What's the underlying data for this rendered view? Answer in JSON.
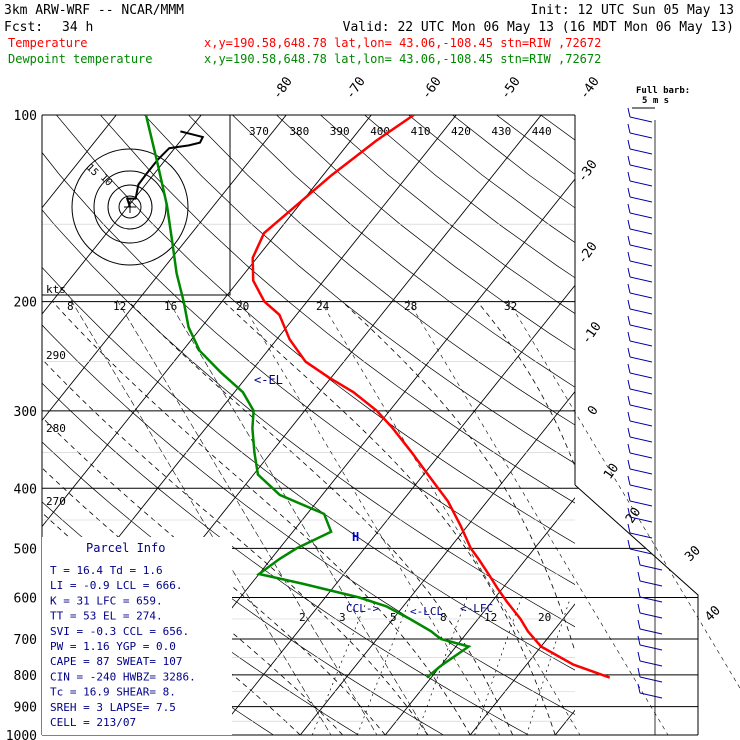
{
  "header": {
    "model": "3km ARW-WRF -- NCAR/MMM",
    "init": "Init: 12 UTC Sun 05 May 13",
    "fcst_label": "Fcst:",
    "fcst_value": "34 h",
    "valid": "Valid: 22 UTC Mon 06 May 13 (16 MDT Mon 06 May 13)",
    "temperature_label": "Temperature",
    "dewpoint_label": "Dewpoint temperature",
    "point_info": "x,y=190.58,648.78   lat,lon= 43.06,-108.45   stn=RIW ,72672"
  },
  "barb_legend": {
    "title": "Full barb:",
    "value": "5 m s"
  },
  "parcel": {
    "title": "Parcel Info",
    "rows": [
      "T  =   16.4  Td =   1.6",
      "LI =   -0.9  LCL =  666.",
      "K  =     31  LFC =  659.",
      "TT =     53  EL  =  274.",
      "SVI =  -0.3  CCL =  656.",
      "PW =   1.16  YGP =   0.0",
      "CAPE =   87  SWEAT=  107",
      "CIN =  -240  HWBZ= 3286.",
      "Tc =   16.9  SHEAR=   8.",
      "SREH =    3  LAPSE=  7.5",
      "CELL = 213/07"
    ]
  },
  "annotations": {
    "el": "<-EL",
    "ccl": "CCL->",
    "lcl": "<-LCL",
    "lfc": "<-LFC"
  },
  "hodograph": {
    "units_label": "kts",
    "ring_labels": [
      "15",
      "10"
    ]
  },
  "chart_data": {
    "type": "line",
    "title": "",
    "pressure_ticks": [
      100,
      200,
      300,
      400,
      500,
      600,
      700,
      800,
      900,
      1000
    ],
    "pressure_range": [
      1000,
      100
    ],
    "isotherm_labels": [
      "-80",
      "-70",
      "-60",
      "-50",
      "-40",
      "-30",
      "-20",
      "-10",
      "0",
      "10",
      "20",
      "30",
      "40"
    ],
    "theta_e_labels": [
      "370",
      "380",
      "390",
      "400",
      "410",
      "420",
      "430",
      "440"
    ],
    "theta_labels": [
      "290",
      "280",
      "270"
    ],
    "wind_speed_axis": [
      "8",
      "12",
      "16",
      "20",
      "24",
      "28",
      "32"
    ],
    "mixing_ratio_labels": [
      "2",
      "3",
      "5",
      "8",
      "12",
      "20"
    ],
    "series": [
      {
        "name": "Temperature",
        "color": "#ff0000",
        "points": [
          {
            "p": 808,
            "t": 21.0
          },
          {
            "p": 770,
            "t": 15.5
          },
          {
            "p": 720,
            "t": 10.0
          },
          {
            "p": 680,
            "t": 7.0
          },
          {
            "p": 650,
            "t": 5.0
          },
          {
            "p": 610,
            "t": 1.8
          },
          {
            "p": 580,
            "t": -0.6
          },
          {
            "p": 550,
            "t": -3.0
          },
          {
            "p": 520,
            "t": -5.6
          },
          {
            "p": 500,
            "t": -7.5
          },
          {
            "p": 460,
            "t": -10.8
          },
          {
            "p": 420,
            "t": -14.6
          },
          {
            "p": 380,
            "t": -19.5
          },
          {
            "p": 350,
            "t": -23.5
          },
          {
            "p": 320,
            "t": -28.0
          },
          {
            "p": 300,
            "t": -31.5
          },
          {
            "p": 280,
            "t": -36.0
          },
          {
            "p": 265,
            "t": -40.3
          },
          {
            "p": 250,
            "t": -44.5
          },
          {
            "p": 230,
            "t": -48.5
          },
          {
            "p": 210,
            "t": -52.0
          },
          {
            "p": 200,
            "t": -55.0
          },
          {
            "p": 185,
            "t": -58.3
          },
          {
            "p": 170,
            "t": -60.5
          },
          {
            "p": 155,
            "t": -61.5
          },
          {
            "p": 140,
            "t": -60.3
          },
          {
            "p": 125,
            "t": -59.0
          },
          {
            "p": 110,
            "t": -57.0
          },
          {
            "p": 100,
            "t": -55.0
          }
        ]
      },
      {
        "name": "Dewpoint temperature",
        "color": "#008800",
        "points": [
          {
            "p": 808,
            "t": -0.5
          },
          {
            "p": 775,
            "t": 0.0
          },
          {
            "p": 720,
            "t": 1.5
          },
          {
            "p": 700,
            "t": -2.5
          },
          {
            "p": 680,
            "t": -4.4
          },
          {
            "p": 650,
            "t": -8.0
          },
          {
            "p": 620,
            "t": -12.0
          },
          {
            "p": 600,
            "t": -16.0
          },
          {
            "p": 570,
            "t": -24.0
          },
          {
            "p": 550,
            "t": -30.0
          },
          {
            "p": 520,
            "t": -29.0
          },
          {
            "p": 500,
            "t": -28.0
          },
          {
            "p": 470,
            "t": -25.5
          },
          {
            "p": 440,
            "t": -28.0
          },
          {
            "p": 410,
            "t": -35.0
          },
          {
            "p": 380,
            "t": -39.5
          },
          {
            "p": 350,
            "t": -42.0
          },
          {
            "p": 320,
            "t": -44.5
          },
          {
            "p": 300,
            "t": -46.0
          },
          {
            "p": 280,
            "t": -49.0
          },
          {
            "p": 260,
            "t": -53.5
          },
          {
            "p": 240,
            "t": -58.0
          },
          {
            "p": 220,
            "t": -61.5
          },
          {
            "p": 200,
            "t": -64.5
          },
          {
            "p": 180,
            "t": -68.0
          },
          {
            "p": 160,
            "t": -71.5
          },
          {
            "p": 140,
            "t": -75.5
          },
          {
            "p": 120,
            "t": -80.5
          },
          {
            "p": 100,
            "t": -86.5
          }
        ]
      }
    ],
    "hodograph_points": [
      [
        0,
        0
      ],
      [
        -1,
        3
      ],
      [
        2,
        3
      ],
      [
        3,
        8
      ],
      [
        6,
        12
      ],
      [
        10,
        17
      ],
      [
        14,
        21
      ],
      [
        21,
        22
      ],
      [
        25,
        23
      ],
      [
        26,
        25
      ],
      [
        22,
        26
      ],
      [
        18,
        27
      ]
    ]
  }
}
